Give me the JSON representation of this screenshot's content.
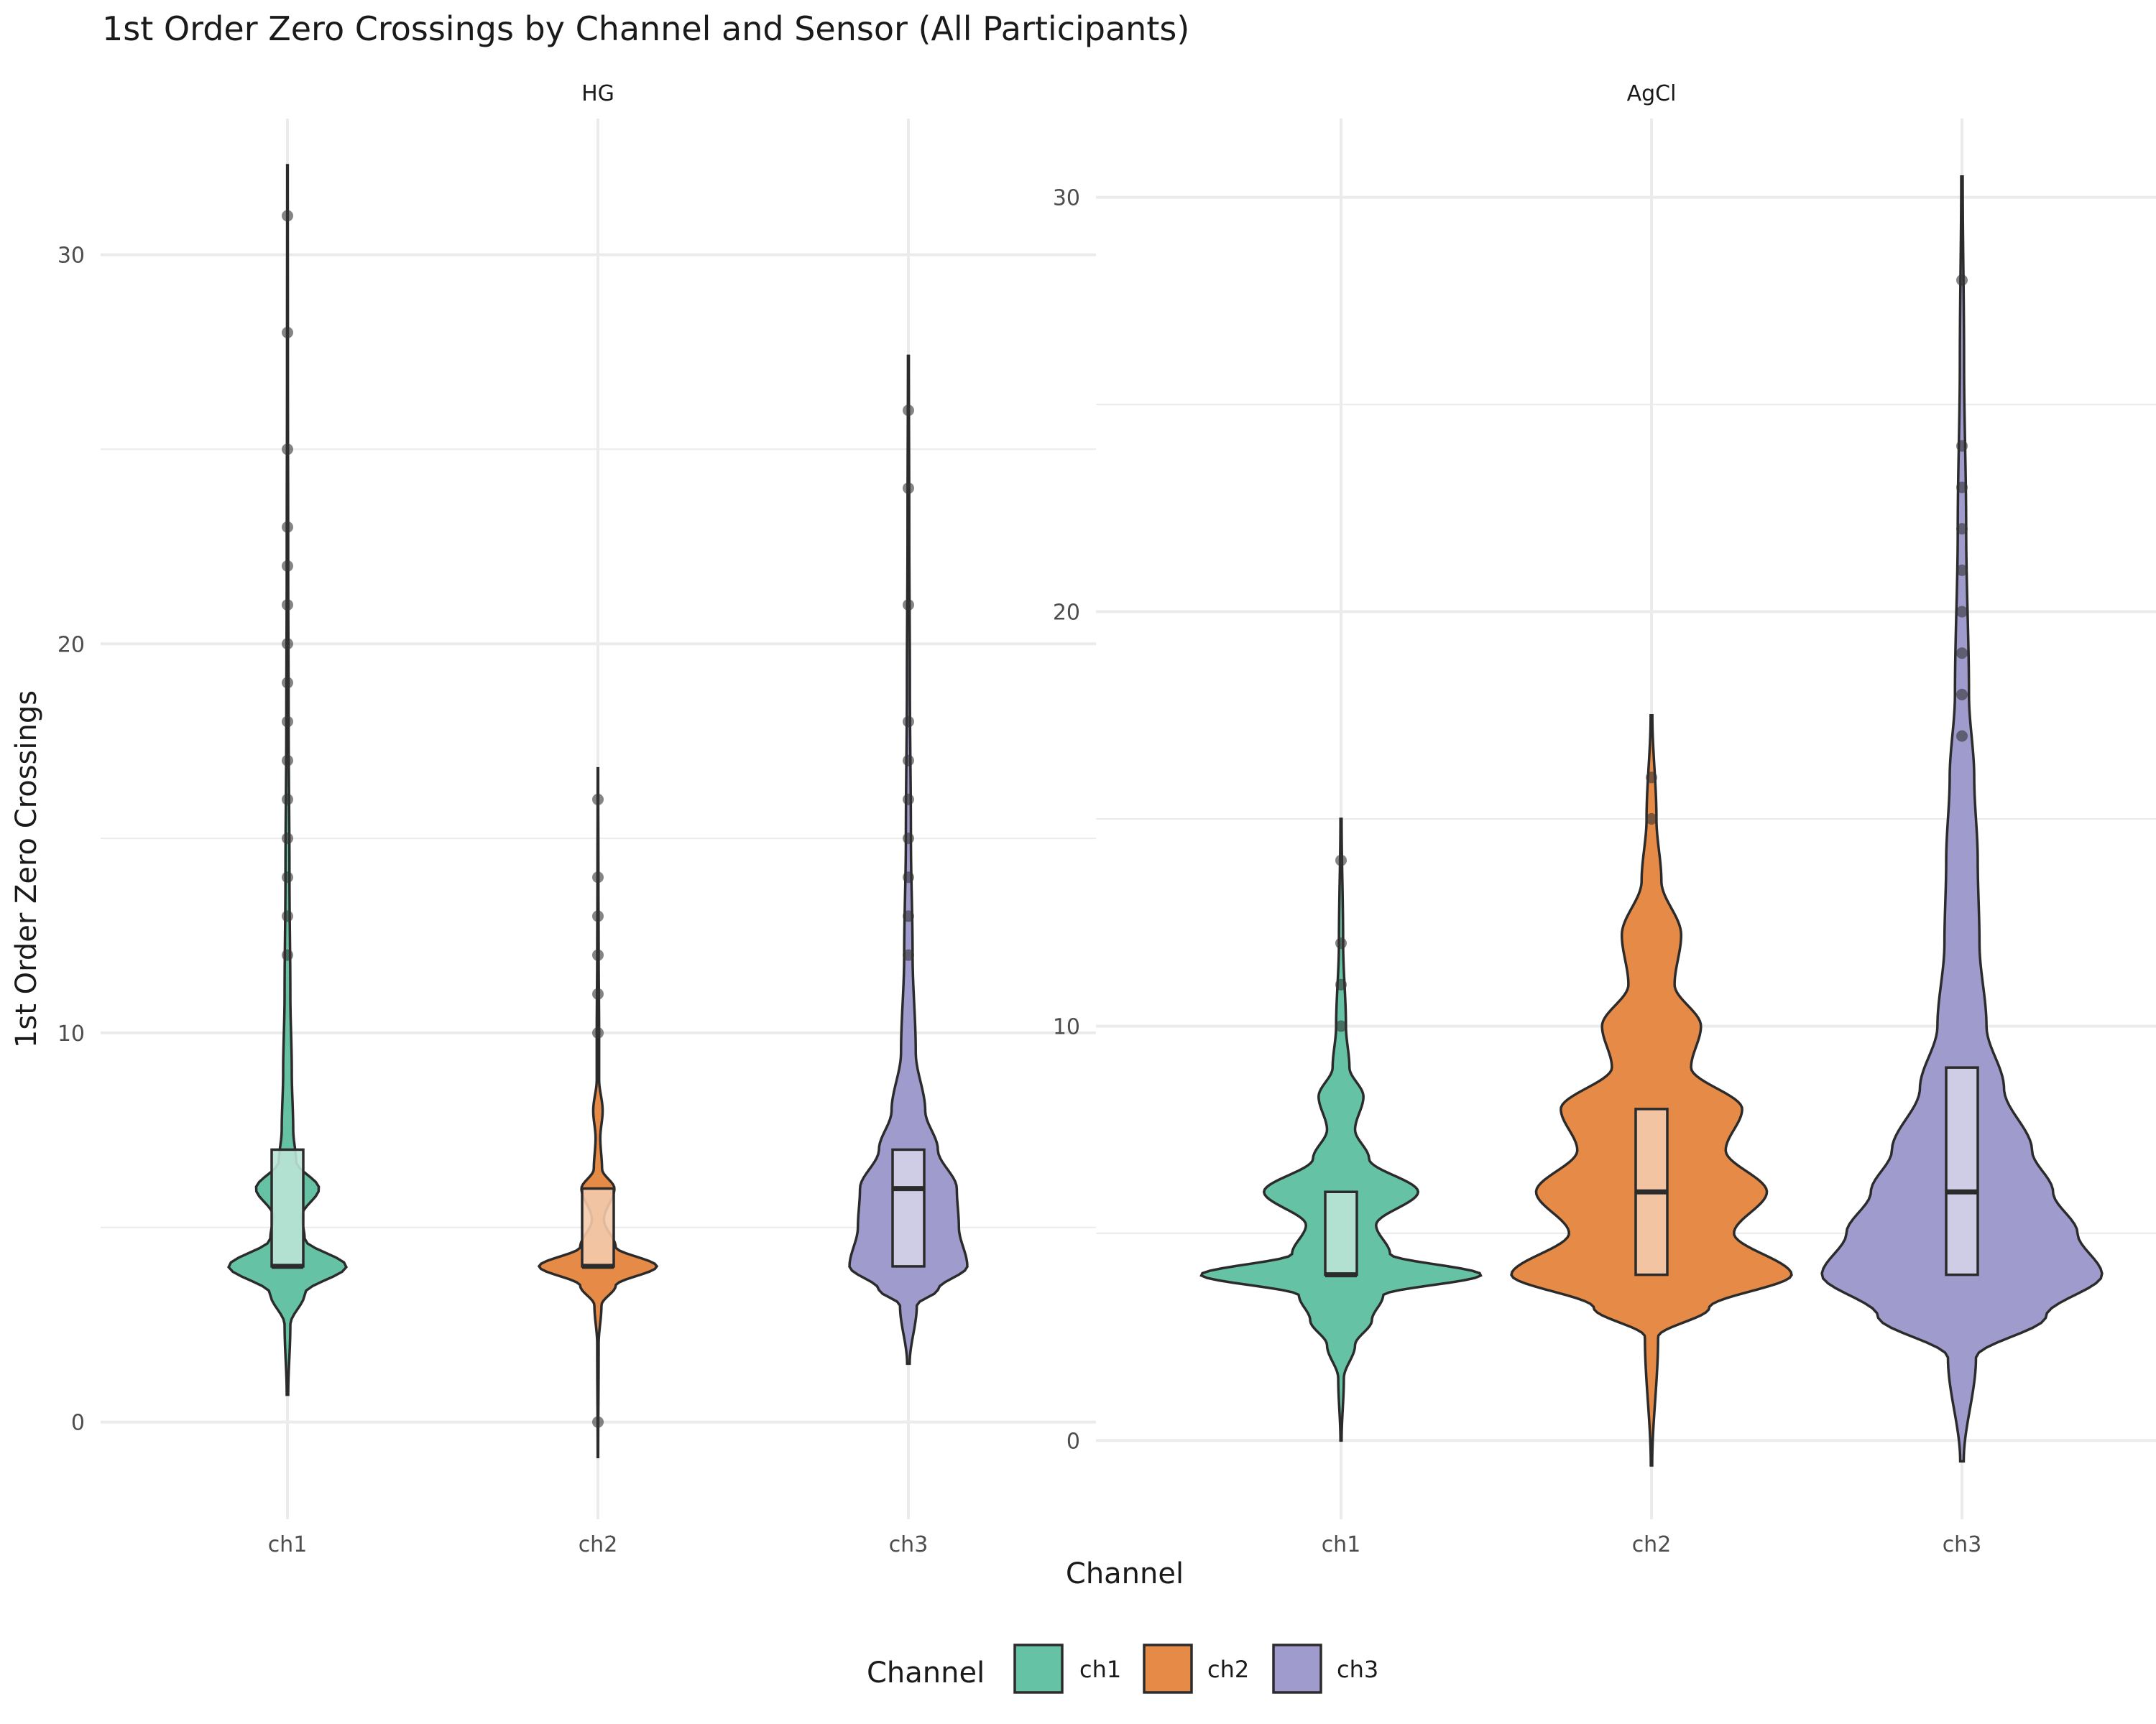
{
  "chart_data": {
    "type": "violin",
    "title": "1st Order Zero Crossings by Channel and Sensor (All Participants)",
    "xlabel": "Channel",
    "ylabel": "1st Order Zero Crossings",
    "categories": [
      "ch1",
      "ch2",
      "ch3"
    ],
    "colors": {
      "ch1": "#66c2a5",
      "ch2": "#e68a47",
      "ch3": "#9f9bcd"
    },
    "legend": {
      "title": "Channel",
      "position": "bottom",
      "entries": [
        "ch1",
        "ch2",
        "ch3"
      ]
    },
    "panels": [
      {
        "name": "HG",
        "ylim": [
          -2.5,
          33.5
        ],
        "yticks": [
          0,
          10,
          20,
          30
        ],
        "series": [
          {
            "channel": "ch1",
            "whisker_range": [
              0.7,
              32.3
            ],
            "box": {
              "q1": 4,
              "median": 4,
              "q3": 7
            },
            "outliers": [
              12,
              13,
              14,
              15,
              16,
              17,
              18,
              19,
              20,
              21,
              22,
              23,
              25,
              28,
              31
            ],
            "density": [
              [
                0.7,
                0.005
              ],
              [
                2.5,
                0.02
              ],
              [
                3.3,
                0.12
              ],
              [
                4,
                0.41
              ],
              [
                4.7,
                0.12
              ],
              [
                5.3,
                0.1
              ],
              [
                6,
                0.22
              ],
              [
                6.7,
                0.06
              ],
              [
                7.5,
                0.04
              ],
              [
                9,
                0.03
              ],
              [
                11,
                0.02
              ],
              [
                14,
                0.014
              ],
              [
                18,
                0.008
              ],
              [
                22,
                0.005
              ],
              [
                27,
                0.003
              ],
              [
                32.3,
                0.002
              ]
            ]
          },
          {
            "channel": "ch2",
            "whisker_range": [
              -0.9,
              16.8
            ],
            "box": {
              "q1": 4,
              "median": 4,
              "q3": 6
            },
            "outliers": [
              0,
              10,
              11,
              12,
              13,
              14,
              16
            ],
            "density": [
              [
                -0.9,
                0.004
              ],
              [
                2,
                0.012
              ],
              [
                3,
                0.06
              ],
              [
                3.5,
                0.3
              ],
              [
                4,
                1.0
              ],
              [
                4.5,
                0.3
              ],
              [
                5.2,
                0.1
              ],
              [
                6,
                0.28
              ],
              [
                6.5,
                0.07
              ],
              [
                7.3,
                0.04
              ],
              [
                8,
                0.08
              ],
              [
                8.8,
                0.02
              ],
              [
                10,
                0.02
              ],
              [
                12,
                0.012
              ],
              [
                14,
                0.008
              ],
              [
                16.8,
                0.004
              ]
            ]
          },
          {
            "channel": "ch3",
            "whisker_range": [
              1.5,
              27.4
            ],
            "box": {
              "q1": 4,
              "median": 6,
              "q3": 7
            },
            "outliers": [
              12,
              13,
              14,
              15,
              16,
              17,
              18,
              21,
              24,
              26
            ],
            "density": [
              [
                1.5,
                0.006
              ],
              [
                3,
                0.04
              ],
              [
                3.4,
                0.14
              ],
              [
                4,
                0.28
              ],
              [
                5,
                0.24
              ],
              [
                6,
                0.23
              ],
              [
                7,
                0.14
              ],
              [
                8,
                0.08
              ],
              [
                9.5,
                0.035
              ],
              [
                12,
                0.02
              ],
              [
                15,
                0.012
              ],
              [
                19,
                0.007
              ],
              [
                23,
                0.004
              ],
              [
                27.4,
                0.002
              ]
            ]
          }
        ]
      },
      {
        "name": "AgCl",
        "ylim": [
          -1.9,
          31.9
        ],
        "yticks": [
          0,
          10,
          20,
          30
        ],
        "series": [
          {
            "channel": "ch1",
            "whisker_range": [
              0,
              15
            ],
            "box": {
              "q1": 4,
              "median": 4,
              "q3": 6
            },
            "outliers": [
              10,
              11,
              12,
              14
            ],
            "density": [
              [
                0,
                0.004
              ],
              [
                1.5,
                0.02
              ],
              [
                2.3,
                0.1
              ],
              [
                2.9,
                0.22
              ],
              [
                3.5,
                0.3
              ],
              [
                4,
                1.0
              ],
              [
                4.5,
                0.35
              ],
              [
                5.2,
                0.25
              ],
              [
                6,
                0.55
              ],
              [
                6.8,
                0.2
              ],
              [
                7.5,
                0.1
              ],
              [
                8.3,
                0.16
              ],
              [
                9,
                0.06
              ],
              [
                10,
                0.035
              ],
              [
                12,
                0.015
              ],
              [
                15,
                0.004
              ]
            ]
          },
          {
            "channel": "ch2",
            "whisker_range": [
              -0.6,
              17.5
            ],
            "box": {
              "q1": 4,
              "median": 6,
              "q3": 8
            },
            "outliers": [
              15,
              16
            ],
            "density": [
              [
                -0.6,
                0.004
              ],
              [
                2.5,
                0.04
              ],
              [
                3.2,
                0.35
              ],
              [
                4,
                0.85
              ],
              [
                5,
                0.5
              ],
              [
                6,
                0.7
              ],
              [
                7,
                0.45
              ],
              [
                8,
                0.55
              ],
              [
                9,
                0.24
              ],
              [
                10,
                0.3
              ],
              [
                11,
                0.14
              ],
              [
                12.2,
                0.18
              ],
              [
                13.5,
                0.06
              ],
              [
                15,
                0.03
              ],
              [
                17.5,
                0.005
              ]
            ]
          },
          {
            "channel": "ch3",
            "whisker_range": [
              -0.5,
              30.5
            ],
            "box": {
              "q1": 4,
              "median": 6,
              "q3": 9
            },
            "outliers": [
              17,
              18,
              19,
              20,
              21,
              22,
              23,
              24,
              28
            ],
            "density": [
              [
                -0.5,
                0.005
              ],
              [
                2,
                0.04
              ],
              [
                3,
                0.24
              ],
              [
                4,
                0.4
              ],
              [
                5,
                0.33
              ],
              [
                6,
                0.26
              ],
              [
                7,
                0.2
              ],
              [
                8.5,
                0.12
              ],
              [
                10,
                0.07
              ],
              [
                12,
                0.05
              ],
              [
                14,
                0.045
              ],
              [
                16,
                0.035
              ],
              [
                18,
                0.02
              ],
              [
                22,
                0.012
              ],
              [
                26,
                0.006
              ],
              [
                30.5,
                0.002
              ]
            ]
          }
        ]
      }
    ]
  }
}
